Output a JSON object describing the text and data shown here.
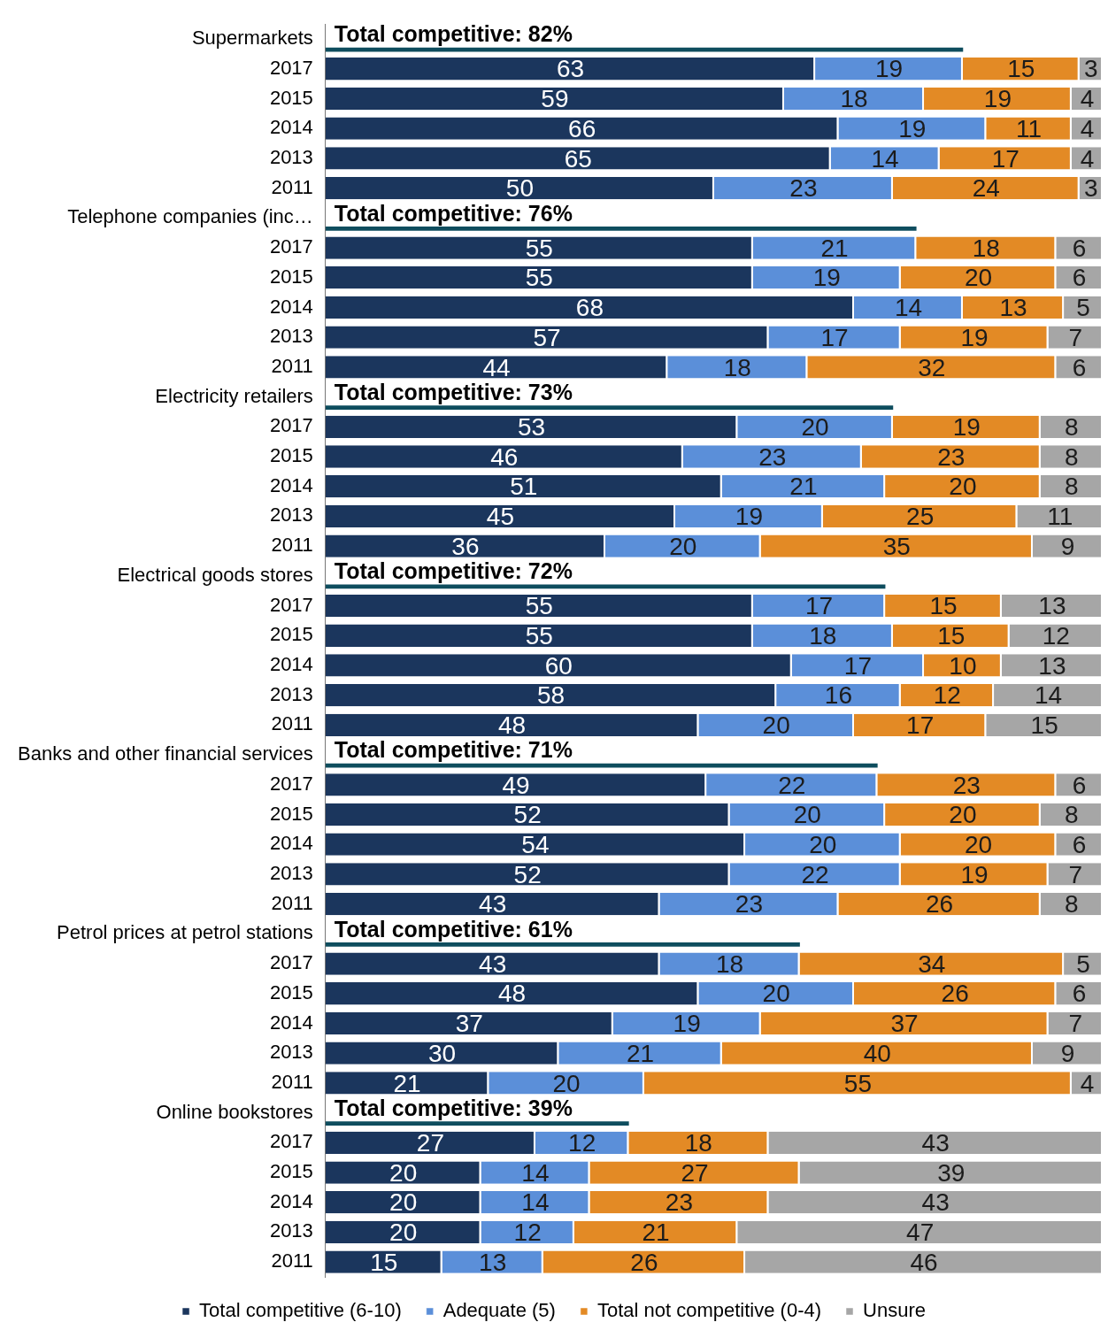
{
  "chart_data": {
    "type": "bar",
    "orientation": "horizontal",
    "stacked": true,
    "data_labels": true,
    "tick_labels": "y",
    "grid": false,
    "legend": "bottom",
    "xlim": [
      0,
      100
    ],
    "categories": [
      "Supermarkets",
      "2017",
      "2015",
      "2014",
      "2013",
      "2011",
      "Telephone companies (inc…",
      "2017",
      "2015",
      "2014",
      "2013",
      "2011",
      "Electricity retailers",
      "2017",
      "2015",
      "2014",
      "2013",
      "2011",
      "Electrical goods stores",
      "2017",
      "2015",
      "2014",
      "2013",
      "2011",
      "Banks and other financial services",
      "2017",
      "2015",
      "2014",
      "2013",
      "2011",
      "Petrol prices at petrol stations",
      "2017",
      "2015",
      "2014",
      "2013",
      "2011",
      "Online bookstores",
      "2017",
      "2015",
      "2014",
      "2013",
      "2011"
    ],
    "series": [
      {
        "name": "Total competitive (6-10)",
        "color": "#1b365d",
        "values": [
          null,
          63,
          59,
          66,
          65,
          50,
          null,
          55,
          55,
          68,
          57,
          44,
          null,
          53,
          46,
          51,
          45,
          36,
          null,
          55,
          55,
          60,
          58,
          48,
          null,
          49,
          52,
          54,
          52,
          43,
          null,
          43,
          48,
          37,
          30,
          21,
          null,
          27,
          20,
          20,
          20,
          15
        ]
      },
      {
        "name": "Adequate (5)",
        "color": "#5b8fd9",
        "values": [
          null,
          19,
          18,
          19,
          14,
          23,
          null,
          21,
          19,
          14,
          17,
          18,
          null,
          20,
          23,
          21,
          19,
          20,
          null,
          17,
          18,
          17,
          16,
          20,
          null,
          22,
          20,
          20,
          22,
          23,
          null,
          18,
          20,
          19,
          21,
          20,
          null,
          12,
          14,
          14,
          12,
          13
        ]
      },
      {
        "name": "Total not competitive (0-4)",
        "color": "#e38a25",
        "values": [
          null,
          15,
          19,
          11,
          17,
          24,
          null,
          18,
          20,
          13,
          19,
          32,
          null,
          19,
          23,
          20,
          25,
          35,
          null,
          15,
          15,
          10,
          12,
          17,
          null,
          23,
          20,
          20,
          19,
          26,
          null,
          34,
          26,
          37,
          40,
          55,
          null,
          18,
          27,
          23,
          21,
          26
        ]
      },
      {
        "name": "Unsure",
        "color": "#a6a6a6",
        "values": [
          null,
          3,
          4,
          4,
          4,
          3,
          null,
          6,
          6,
          5,
          7,
          6,
          null,
          8,
          8,
          8,
          11,
          9,
          null,
          13,
          12,
          13,
          14,
          15,
          null,
          6,
          8,
          6,
          7,
          8,
          null,
          5,
          6,
          7,
          9,
          4,
          null,
          43,
          39,
          43,
          47,
          46
        ]
      },
      {
        "color": "#0e4d5e",
        "values": [
          82,
          null,
          null,
          null,
          null,
          null,
          76,
          null,
          null,
          null,
          null,
          null,
          73,
          null,
          null,
          null,
          null,
          null,
          72,
          null,
          null,
          null,
          null,
          null,
          71,
          null,
          null,
          null,
          null,
          null,
          61,
          null,
          null,
          null,
          null,
          null,
          39,
          null,
          null,
          null,
          null,
          null
        ],
        "value_labels": [
          "Total competitive: 82%",
          null,
          null,
          null,
          null,
          null,
          "Total competitive: 76%",
          null,
          null,
          null,
          null,
          null,
          "Total competitive: 73%",
          null,
          null,
          null,
          null,
          null,
          "Total competitive: 72%",
          null,
          null,
          null,
          null,
          null,
          "Total competitive: 71%",
          null,
          null,
          null,
          null,
          null,
          "Total competitive: 61%",
          null,
          null,
          null,
          null,
          null,
          "Total competitive: 39%",
          null,
          null,
          null,
          null,
          null
        ]
      }
    ]
  }
}
